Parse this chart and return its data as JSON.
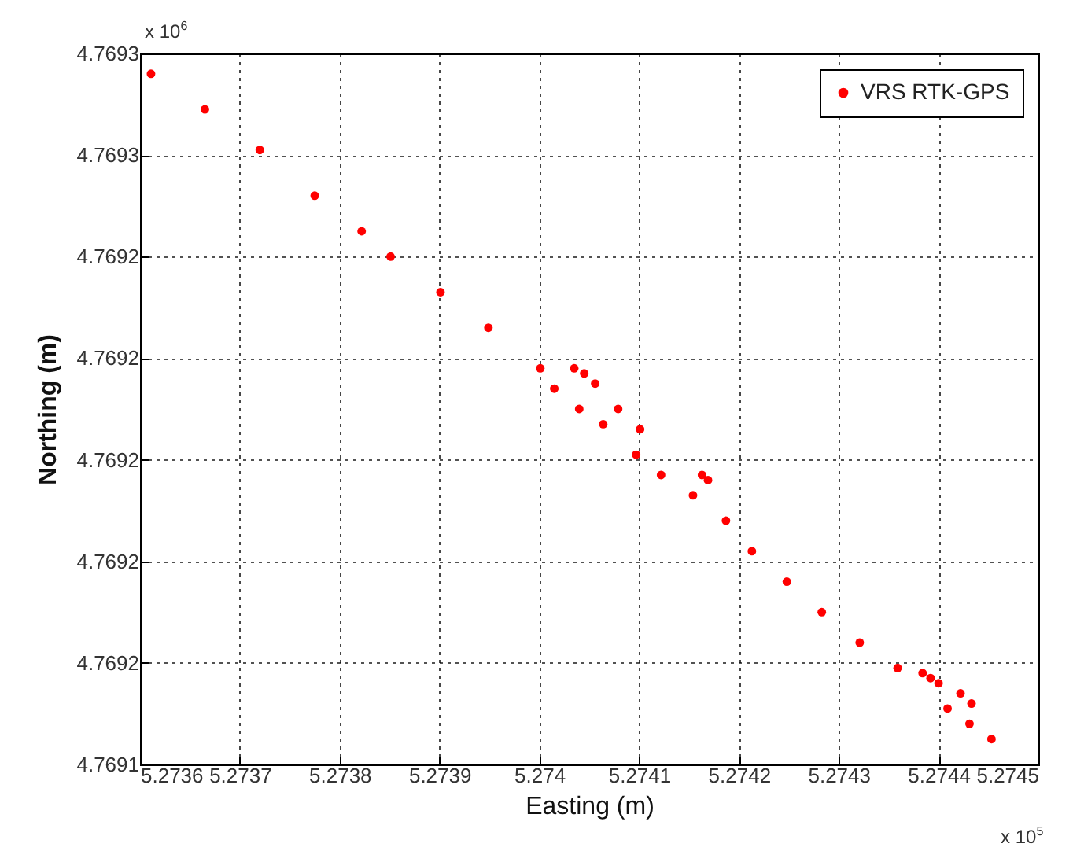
{
  "chart_data": {
    "type": "scatter",
    "xlabel": "Easting (m)",
    "ylabel": "Northing (m)",
    "annotations": [
      "x 10$^{6}$",
      "x 10$^{5}$"
    ],
    "xlim": [
      5.2736,
      5.2745
    ],
    "xticks": [
      5.2736,
      5.2737,
      5.2738,
      5.2739,
      5.274,
      5.2741,
      5.2742,
      5.2743,
      5.2744,
      5.2745
    ],
    "ylim": [
      4.76914,
      4.76928
    ],
    "yticks": [
      {
        "value": 4.76914,
        "label": "4.7691"
      },
      {
        "value": 4.76916,
        "label": "4.7692"
      },
      {
        "value": 4.76918,
        "label": "4.7692"
      },
      {
        "value": 4.7692,
        "label": "4.7692"
      },
      {
        "value": 4.76922,
        "label": "4.7692"
      },
      {
        "value": 4.76924,
        "label": "4.7692"
      },
      {
        "value": 4.76926,
        "label": "4.7693"
      },
      {
        "value": 4.76928,
        "label": "4.7693"
      }
    ],
    "grid": true,
    "legend": "top right",
    "marker": "circle",
    "series": [
      {
        "name": "VRS RTK-GPS",
        "color": "#ff0000",
        "x": [
          5.273611,
          5.273665,
          5.27372,
          5.273775,
          5.273822,
          5.273851,
          5.273901,
          5.273949,
          5.274001,
          5.274015,
          5.27404,
          5.274064,
          5.274097,
          5.274122,
          5.274154,
          5.274187,
          5.274213,
          5.274248,
          5.274283,
          5.274321,
          5.274359,
          5.274409,
          5.274431,
          5.274453,
          5.274035,
          5.274045,
          5.274056,
          5.274079,
          5.274101,
          5.274163,
          5.274169,
          5.274384,
          5.274392,
          5.2744,
          5.274422,
          5.274433
        ],
        "values": [
          4.769276,
          4.769269,
          4.769261,
          4.769252,
          4.769245,
          4.76924,
          4.769233,
          4.769226,
          4.769218,
          4.769214,
          4.76921,
          4.769207,
          4.769201,
          4.769197,
          4.769193,
          4.769188,
          4.769182,
          4.769176,
          4.76917,
          4.769164,
          4.769159,
          4.769151,
          4.769148,
          4.769145,
          4.769218,
          4.769217,
          4.769215,
          4.76921,
          4.769206,
          4.769197,
          4.769196,
          4.769158,
          4.769157,
          4.769156,
          4.769154,
          4.769152
        ]
      }
    ]
  }
}
